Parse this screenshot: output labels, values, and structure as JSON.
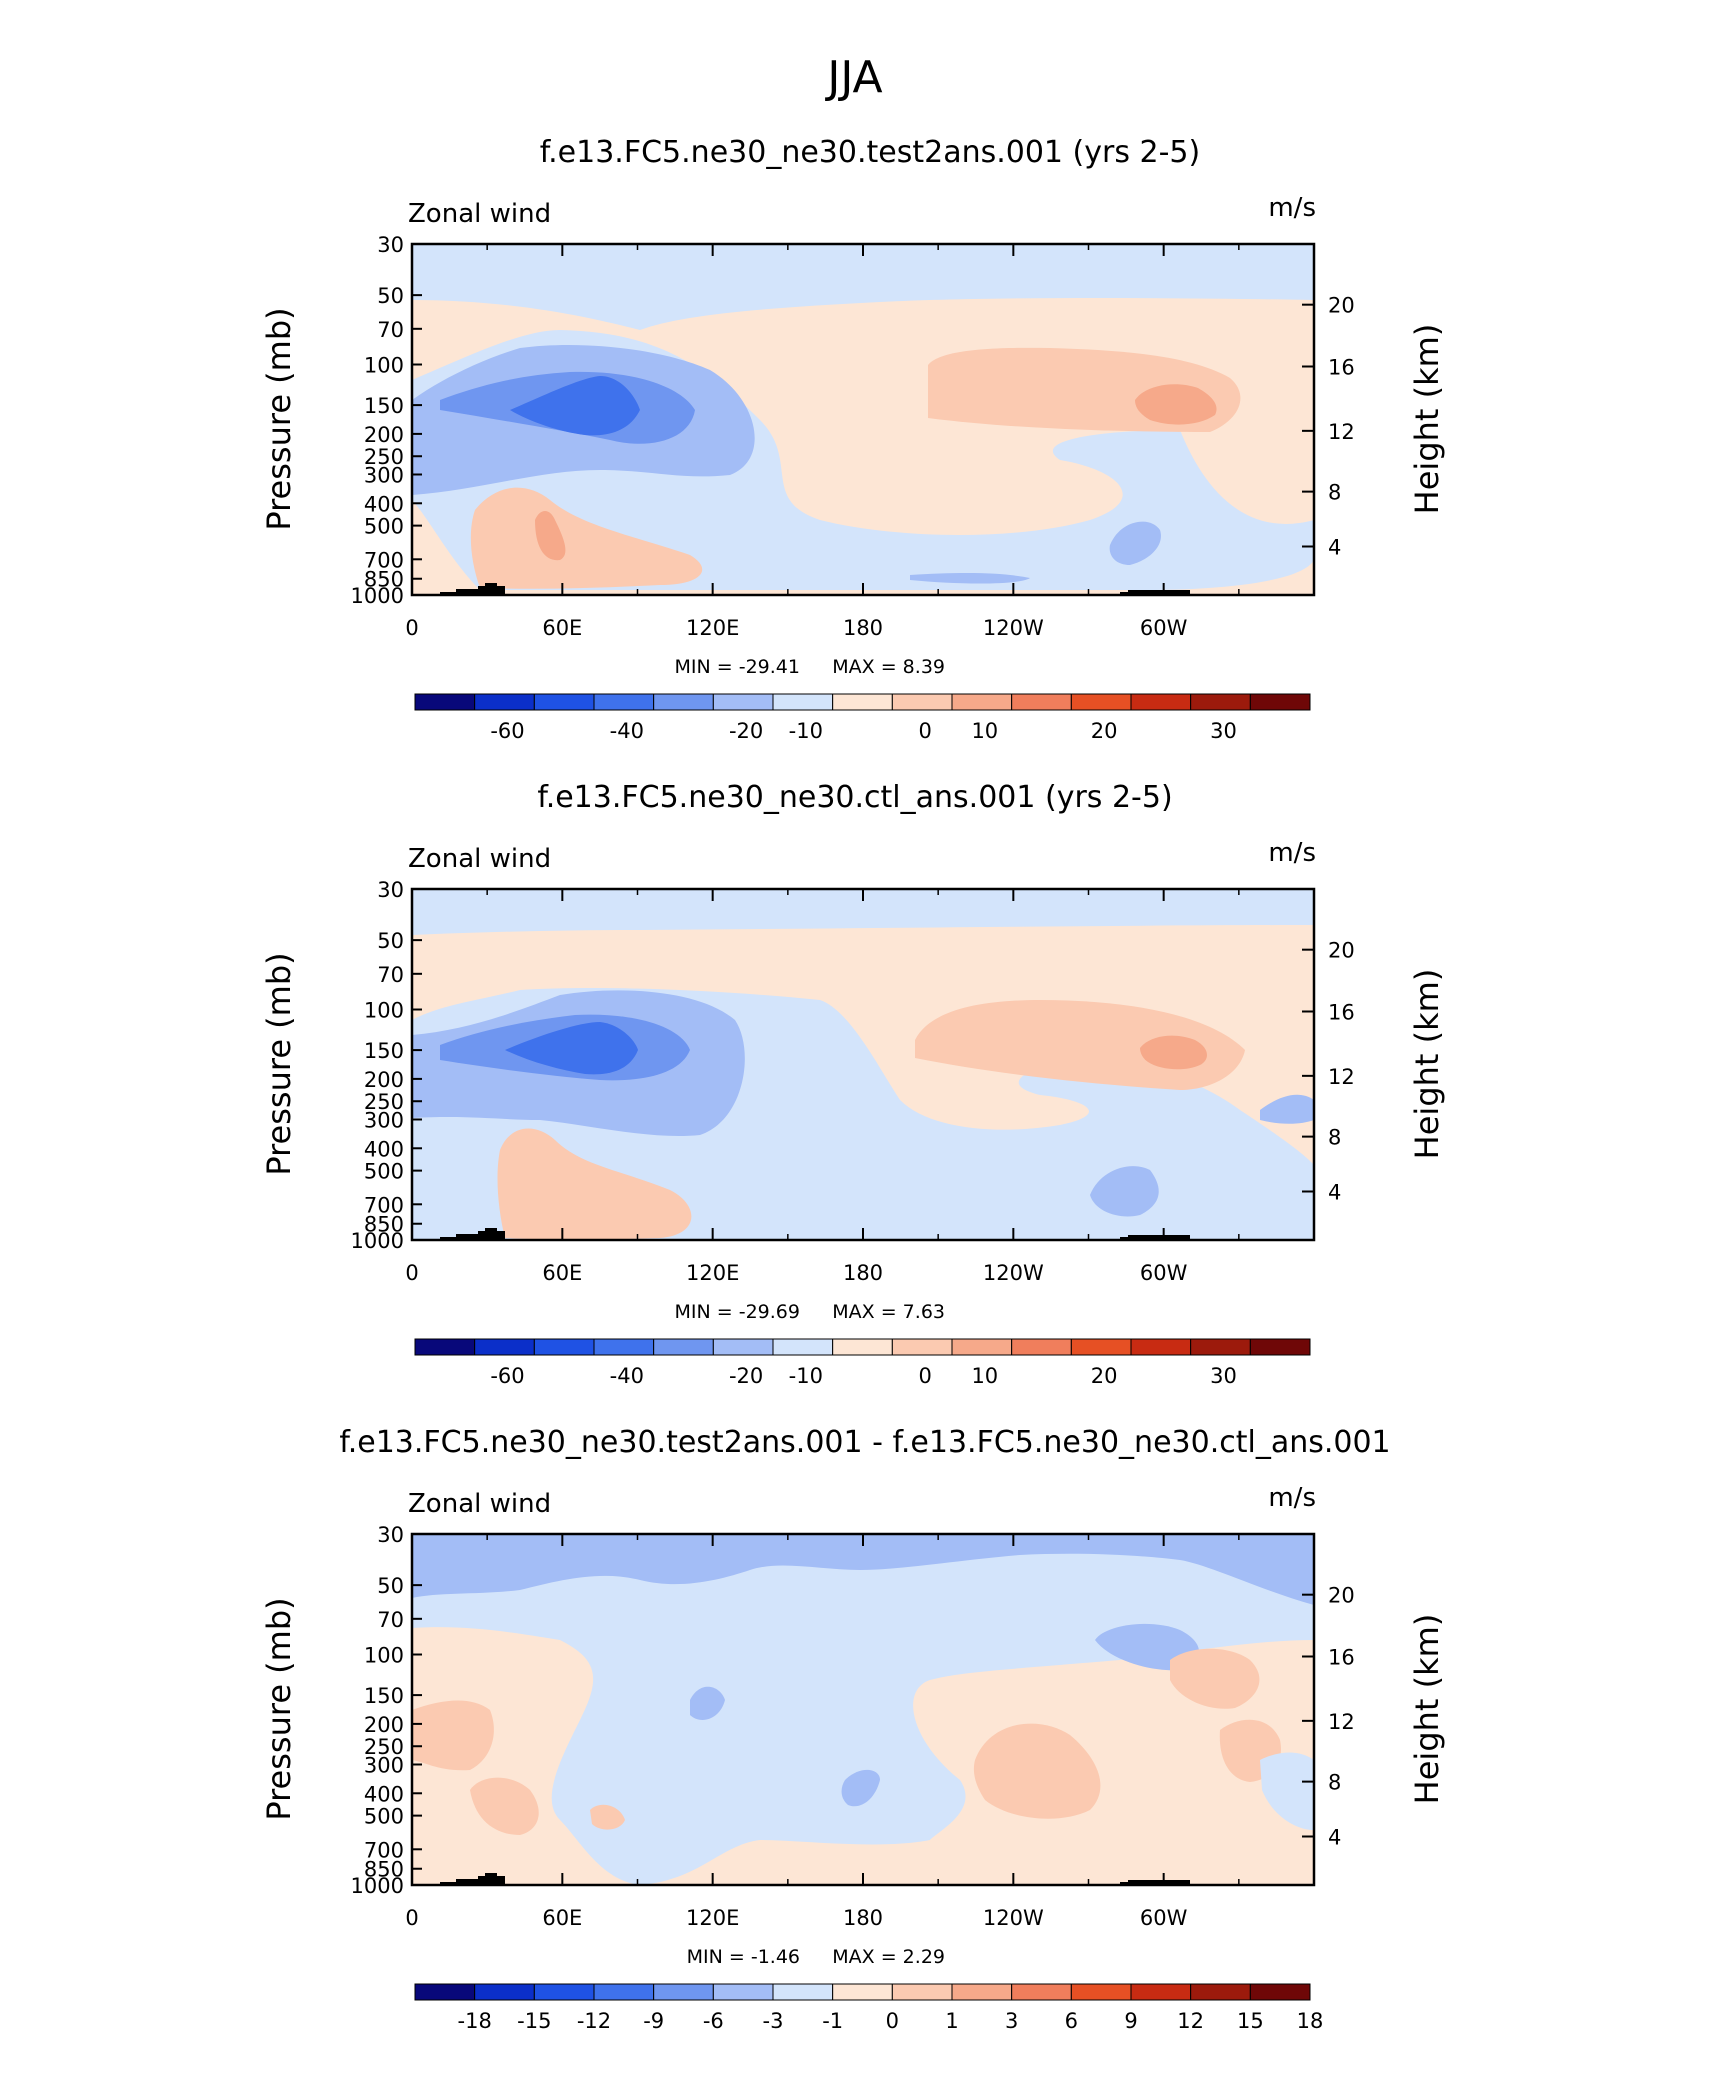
{
  "page_title": "JJA",
  "colors": {
    "diverging_scale": [
      "#08087a",
      "#0b2fc9",
      "#1f52e4",
      "#3f72ec",
      "#6f96f0",
      "#a3bdf6",
      "#d3e4fb",
      "#fde6d5",
      "#fbcab1",
      "#f6a98a",
      "#f07e5c",
      "#e65024",
      "#c82b12",
      "#9c1a0c",
      "#6f0707"
    ]
  },
  "chart_data": [
    {
      "type": "heatmap",
      "title": "f.e13.FC5.ne30_ne30.test2ans.001 (yrs 2-5)",
      "variable_label": "Zonal wind",
      "units_label": "m/s",
      "ylabel": "Pressure (mb)",
      "y2label": "Height (km)",
      "x_ticks": [
        "0",
        "60E",
        "120E",
        "180",
        "120W",
        "60W"
      ],
      "y_ticks": [
        "30",
        "50",
        "70",
        "100",
        "150",
        "200",
        "250",
        "300",
        "400",
        "500",
        "700",
        "850",
        "1000"
      ],
      "y2_ticks": [
        "20",
        "16",
        "12",
        "8",
        "4"
      ],
      "min_label": "MIN = -29.41",
      "max_label": "MAX = 8.39",
      "min": -29.41,
      "max": 8.39,
      "colorbar_labels": [
        "-60",
        "-40",
        "-20",
        "-10",
        "0",
        "10",
        "20",
        "30"
      ],
      "features": [
        {
          "lon": 70,
          "p": 150,
          "value": -29.4
        },
        {
          "lon": 300,
          "p": 150,
          "value": 8.4
        },
        {
          "lon": 52,
          "p": 600,
          "value": 7.5
        },
        {
          "lon": 260,
          "p": 600,
          "value": -9
        },
        {
          "lon": 195,
          "p": 850,
          "value": -9
        }
      ]
    },
    {
      "type": "heatmap",
      "title": "f.e13.FC5.ne30_ne30.ctl_ans.001 (yrs 2-5)",
      "variable_label": "Zonal wind",
      "units_label": "m/s",
      "ylabel": "Pressure (mb)",
      "y2label": "Height (km)",
      "x_ticks": [
        "0",
        "60E",
        "120E",
        "180",
        "120W",
        "60W"
      ],
      "y_ticks": [
        "30",
        "50",
        "70",
        "100",
        "150",
        "200",
        "250",
        "300",
        "400",
        "500",
        "700",
        "850",
        "1000"
      ],
      "y2_ticks": [
        "20",
        "16",
        "12",
        "8",
        "4"
      ],
      "min_label": "MIN = -29.69",
      "max_label": "MAX = 7.63",
      "min": -29.69,
      "max": 7.63,
      "colorbar_labels": [
        "-60",
        "-40",
        "-20",
        "-10",
        "0",
        "10",
        "20",
        "30"
      ],
      "features": [
        {
          "lon": 68,
          "p": 150,
          "value": -29.7
        },
        {
          "lon": 300,
          "p": 150,
          "value": 7.6
        },
        {
          "lon": 62,
          "p": 600,
          "value": 5
        },
        {
          "lon": 285,
          "p": 600,
          "value": -9
        },
        {
          "lon": 355,
          "p": 220,
          "value": -9
        }
      ]
    },
    {
      "type": "heatmap",
      "title": "f.e13.FC5.ne30_ne30.test2ans.001 - f.e13.FC5.ne30_ne30.ctl_ans.001",
      "variable_label": "Zonal wind",
      "units_label": "m/s",
      "ylabel": "Pressure (mb)",
      "y2label": "Height (km)",
      "x_ticks": [
        "0",
        "60E",
        "120E",
        "180",
        "120W",
        "60W"
      ],
      "y_ticks": [
        "30",
        "50",
        "70",
        "100",
        "150",
        "200",
        "250",
        "300",
        "400",
        "500",
        "700",
        "850",
        "1000"
      ],
      "y2_ticks": [
        "20",
        "16",
        "12",
        "8",
        "4"
      ],
      "min_label": "MIN = -1.46",
      "max_label": "MAX = 2.29",
      "min": -1.46,
      "max": 2.29,
      "colorbar_labels": [
        "-18",
        "-15",
        "-12",
        "-9",
        "-6",
        "-3",
        "-1",
        "0",
        "1",
        "3",
        "6",
        "9",
        "12",
        "15",
        "18"
      ],
      "features": [
        {
          "lon": 250,
          "p": 300,
          "value": 2.3
        },
        {
          "lon": 180,
          "p": 30,
          "value": -1.5
        },
        {
          "lon": 130,
          "p": 350,
          "value": -1.4
        }
      ]
    }
  ]
}
